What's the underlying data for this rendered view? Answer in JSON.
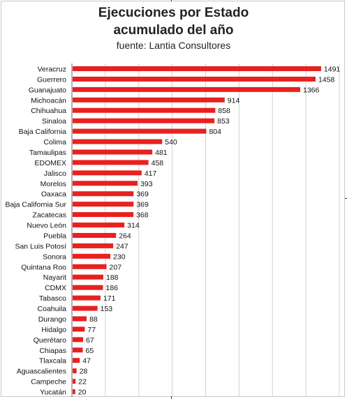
{
  "title_line1": "Ejecuciones por Estado",
  "title_line2": "acumulado del año",
  "subtitle": "fuente: Lantia Consultores",
  "chart_data": {
    "type": "bar",
    "orientation": "horizontal",
    "title": "Ejecuciones por Estado acumulado del año",
    "subtitle": "fuente: Lantia Consultores",
    "categories": [
      "Veracruz",
      "Guerrero",
      "Guanajuato",
      "Michoacán",
      "Chihuahua",
      "Sinaloa",
      "Baja California",
      "Colima",
      "Tamaulipas",
      "EDOMEX",
      "Jalisco",
      "Morelos",
      "Oaxaca",
      "Baja California Sur",
      "Zacatecas",
      "Nuevo León",
      "Puebla",
      "San Luis Potosí",
      "Sonora",
      "Quintana Roo",
      "Nayarit",
      "CDMX",
      "Tabasco",
      "Coahuila",
      "Durango",
      "Hidalgo",
      "Querétaro",
      "Chiapas",
      "Tlaxcala",
      "Aguascalientes",
      "Campeche",
      "Yucatán"
    ],
    "values": [
      1491,
      1458,
      1366,
      914,
      858,
      853,
      804,
      540,
      481,
      458,
      417,
      393,
      369,
      369,
      368,
      314,
      264,
      247,
      230,
      207,
      188,
      186,
      171,
      153,
      88,
      77,
      67,
      65,
      47,
      28,
      22,
      20
    ],
    "xlim": [
      0,
      1600
    ],
    "grid": true,
    "bar_color": "#e8211f"
  }
}
